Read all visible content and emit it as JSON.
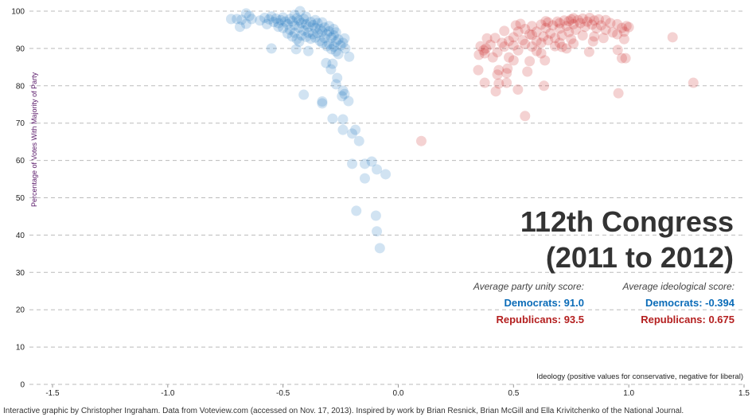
{
  "chart_data": {
    "type": "scatter",
    "title": "112th Congress",
    "subtitle": "(2011 to 2012)",
    "xlabel": "Ideology (positive values for conservative, negative for liberal)",
    "ylabel": "Percentage of Votes With Majority of Party",
    "xlim": [
      -1.6,
      1.5
    ],
    "ylim": [
      0,
      100
    ],
    "xticks": [
      "-1.5",
      "-1.0",
      "-0.5",
      "0.0",
      "0.5",
      "1.0",
      "1.5"
    ],
    "xtick_values": [
      -1.5,
      -1.0,
      -0.5,
      0.0,
      0.5,
      1.0,
      1.5
    ],
    "yticks": [
      0,
      10,
      20,
      30,
      40,
      50,
      60,
      70,
      80,
      90,
      100
    ],
    "grid": "horizontal dashed",
    "colors": {
      "democrats": "#1a74bd",
      "republicans": "#c81e1e"
    },
    "series": [
      {
        "party": "democrats",
        "points": [
          [
            -0.725,
            97.9
          ],
          [
            -0.7,
            97.9
          ],
          [
            -0.687,
            95.8
          ],
          [
            -0.68,
            97.7
          ],
          [
            -0.66,
            99.4
          ],
          [
            -0.646,
            98.7
          ],
          [
            -0.66,
            96.6
          ],
          [
            -0.636,
            97.9
          ],
          [
            -0.6,
            97.5
          ],
          [
            -0.58,
            98.2
          ],
          [
            -0.56,
            97.8
          ],
          [
            -0.55,
            98.6
          ],
          [
            -0.54,
            97.1
          ],
          [
            -0.53,
            98
          ],
          [
            -0.52,
            96.8
          ],
          [
            -0.51,
            97.6
          ],
          [
            -0.5,
            98.3
          ],
          [
            -0.49,
            97.2
          ],
          [
            -0.48,
            96.5
          ],
          [
            -0.47,
            97.9
          ],
          [
            -0.46,
            97.3
          ],
          [
            -0.45,
            96.2
          ],
          [
            -0.44,
            98.1
          ],
          [
            -0.43,
            97.5
          ],
          [
            -0.42,
            96.8
          ],
          [
            -0.41,
            97.9
          ],
          [
            -0.4,
            96.5
          ],
          [
            -0.39,
            95.8
          ],
          [
            -0.38,
            97.1
          ],
          [
            -0.37,
            96.3
          ],
          [
            -0.36,
            95.5
          ],
          [
            -0.35,
            96.8
          ],
          [
            -0.34,
            95.2
          ],
          [
            -0.33,
            94.5
          ],
          [
            -0.32,
            95.6
          ],
          [
            -0.31,
            93.8
          ],
          [
            -0.3,
            94.6
          ],
          [
            -0.29,
            92.9
          ],
          [
            -0.28,
            93.5
          ],
          [
            -0.27,
            91.8
          ],
          [
            -0.26,
            92.4
          ],
          [
            -0.25,
            90.8
          ],
          [
            -0.24,
            91.5
          ],
          [
            -0.57,
            96.5
          ],
          [
            -0.52,
            95.8
          ],
          [
            -0.5,
            95.5
          ],
          [
            -0.47,
            95
          ],
          [
            -0.45,
            94.2
          ],
          [
            -0.43,
            95.6
          ],
          [
            -0.42,
            93.5
          ],
          [
            -0.41,
            94.8
          ],
          [
            -0.4,
            93.1
          ],
          [
            -0.39,
            94.2
          ],
          [
            -0.38,
            92.6
          ],
          [
            -0.37,
            93.8
          ],
          [
            -0.36,
            92.9
          ],
          [
            -0.35,
            94.1
          ],
          [
            -0.34,
            92
          ],
          [
            -0.33,
            91.5
          ],
          [
            -0.32,
            92.8
          ],
          [
            -0.31,
            90.6
          ],
          [
            -0.3,
            91.2
          ],
          [
            -0.29,
            89.8
          ],
          [
            -0.28,
            90.5
          ],
          [
            -0.27,
            89.2
          ],
          [
            -0.26,
            88.5
          ],
          [
            -0.44,
            92.5
          ],
          [
            -0.46,
            93.2
          ],
          [
            -0.48,
            94
          ],
          [
            -0.43,
            91.8
          ],
          [
            -0.45,
            99
          ],
          [
            -0.4,
            98.5
          ],
          [
            -0.36,
            97.6
          ],
          [
            -0.33,
            97
          ],
          [
            -0.3,
            96
          ],
          [
            -0.28,
            95.2
          ],
          [
            -0.27,
            94.3
          ],
          [
            -0.426,
            100
          ],
          [
            -0.55,
            90.0
          ],
          [
            -0.443,
            89.8
          ],
          [
            -0.39,
            89.3
          ],
          [
            -0.233,
            92.7
          ],
          [
            -0.23,
            90.0
          ],
          [
            -0.213,
            87.8
          ],
          [
            -0.313,
            86.1
          ],
          [
            -0.292,
            84.4
          ],
          [
            -0.285,
            85.9
          ],
          [
            -0.41,
            77.6
          ],
          [
            -0.33,
            75.3
          ],
          [
            -0.33,
            75.8
          ],
          [
            -0.265,
            82.1
          ],
          [
            -0.27,
            80.4
          ],
          [
            -0.24,
            78.7
          ],
          [
            -0.233,
            77.8
          ],
          [
            -0.244,
            77.2
          ],
          [
            -0.216,
            75.9
          ],
          [
            -0.285,
            71.2
          ],
          [
            -0.24,
            71.0
          ],
          [
            -0.24,
            68.2
          ],
          [
            -0.186,
            68.2
          ],
          [
            -0.2,
            67.2
          ],
          [
            -0.17,
            65.2
          ],
          [
            -0.2,
            59.1
          ],
          [
            -0.145,
            59.1
          ],
          [
            -0.115,
            59.7
          ],
          [
            -0.093,
            57.6
          ],
          [
            -0.055,
            56.3
          ],
          [
            -0.145,
            55.2
          ],
          [
            -0.182,
            46.5
          ],
          [
            -0.097,
            45.2
          ],
          [
            -0.093,
            41.0
          ],
          [
            -0.08,
            36.5
          ]
        ]
      },
      {
        "party": "republicans",
        "points": [
          [
            0.5,
            93
          ],
          [
            0.52,
            94.5
          ],
          [
            0.54,
            92.2
          ],
          [
            0.55,
            95.2
          ],
          [
            0.57,
            93.8
          ],
          [
            0.58,
            96
          ],
          [
            0.6,
            94.5
          ],
          [
            0.6,
            92
          ],
          [
            0.62,
            96.4
          ],
          [
            0.63,
            93.2
          ],
          [
            0.64,
            95.5
          ],
          [
            0.65,
            97
          ],
          [
            0.66,
            94
          ],
          [
            0.67,
            96.2
          ],
          [
            0.68,
            92.8
          ],
          [
            0.69,
            97.2
          ],
          [
            0.7,
            95.3
          ],
          [
            0.71,
            93.5
          ],
          [
            0.72,
            97.5
          ],
          [
            0.73,
            96
          ],
          [
            0.74,
            94.4
          ],
          [
            0.75,
            97.8
          ],
          [
            0.76,
            96.5
          ],
          [
            0.77,
            95
          ],
          [
            0.78,
            97.6
          ],
          [
            0.79,
            96.8
          ],
          [
            0.8,
            98
          ],
          [
            0.81,
            95.8
          ],
          [
            0.82,
            97.2
          ],
          [
            0.83,
            98.2
          ],
          [
            0.84,
            96.4
          ],
          [
            0.85,
            97.5
          ],
          [
            0.86,
            95.4
          ],
          [
            0.87,
            97.8
          ],
          [
            0.88,
            96.2
          ],
          [
            0.9,
            95
          ],
          [
            0.92,
            96.8
          ],
          [
            0.93,
            94.3
          ],
          [
            0.95,
            96.5
          ],
          [
            0.97,
            95.5
          ],
          [
            0.98,
            94.5
          ],
          [
            0.99,
            96
          ],
          [
            0.45,
            91.5
          ],
          [
            0.42,
            92.8
          ],
          [
            0.4,
            91
          ],
          [
            0.38,
            90
          ],
          [
            0.37,
            89.5
          ],
          [
            0.43,
            89
          ],
          [
            0.46,
            90.5
          ],
          [
            0.48,
            92
          ],
          [
            0.5,
            90.8
          ],
          [
            0.52,
            89.5
          ],
          [
            0.55,
            91.2
          ],
          [
            0.58,
            90.5
          ],
          [
            0.6,
            89.3
          ],
          [
            0.62,
            91.5
          ],
          [
            0.65,
            92.2
          ],
          [
            0.7,
            91.5
          ],
          [
            0.68,
            90.6
          ],
          [
            0.75,
            92.5
          ],
          [
            0.8,
            93.5
          ],
          [
            0.85,
            93.2
          ],
          [
            0.74,
            97.3
          ],
          [
            0.76,
            98.1
          ],
          [
            0.7,
            96.8
          ],
          [
            0.64,
            97.3
          ],
          [
            0.58,
            93.6
          ],
          [
            0.9,
            97.6
          ],
          [
            0.53,
            96.6
          ],
          [
            0.1,
            65.2
          ],
          [
            0.55,
            71.9
          ],
          [
            0.955,
            78.0
          ],
          [
            1.28,
            80.8
          ],
          [
            1.19,
            93.0
          ],
          [
            0.347,
            84.2
          ],
          [
            0.375,
            80.8
          ],
          [
            0.423,
            78.5
          ],
          [
            0.436,
            80.6
          ],
          [
            0.47,
            80.8
          ],
          [
            0.519,
            79.0
          ],
          [
            0.632,
            80.0
          ],
          [
            0.436,
            84.2
          ],
          [
            0.47,
            83.4
          ],
          [
            0.474,
            84.6
          ],
          [
            0.43,
            83.0
          ],
          [
            0.56,
            83.8
          ],
          [
            0.57,
            86.6
          ],
          [
            0.636,
            86.8
          ],
          [
            0.62,
            88.7
          ],
          [
            0.828,
            89.1
          ],
          [
            0.952,
            89.6
          ],
          [
            0.97,
            87.4
          ],
          [
            0.986,
            87.4
          ],
          [
            0.35,
            88.3
          ],
          [
            0.41,
            87.6
          ],
          [
            0.48,
            87.6
          ],
          [
            0.5,
            86.8
          ],
          [
            0.73,
            90.0
          ],
          [
            0.76,
            91.3
          ],
          [
            0.845,
            91.9
          ],
          [
            0.89,
            92.8
          ],
          [
            0.98,
            92.5
          ],
          [
            1.0,
            95.7
          ],
          [
            0.95,
            93.8
          ],
          [
            0.71,
            90.4
          ],
          [
            0.357,
            90.6
          ],
          [
            0.375,
            88.7
          ],
          [
            0.385,
            92.7
          ],
          [
            0.46,
            94.7
          ],
          [
            0.51,
            96.2
          ]
        ]
      }
    ]
  },
  "stats": {
    "unity_heading": "Average party unity score:",
    "ideology_heading": "Average ideological score:",
    "dem_unity": "Democrats: 91.0",
    "rep_unity": "Republicans: 93.5",
    "dem_ideology": "Democrats: -0.394",
    "rep_ideology": "Republicans: 0.675"
  },
  "footer": "Interactive graphic by Christopher Ingraham. Data from Voteview.com (accessed on Nov. 17, 2013). Inspired by work by Brian Resnick, Brian McGill and Ella Krivitchenko of the National Journal."
}
